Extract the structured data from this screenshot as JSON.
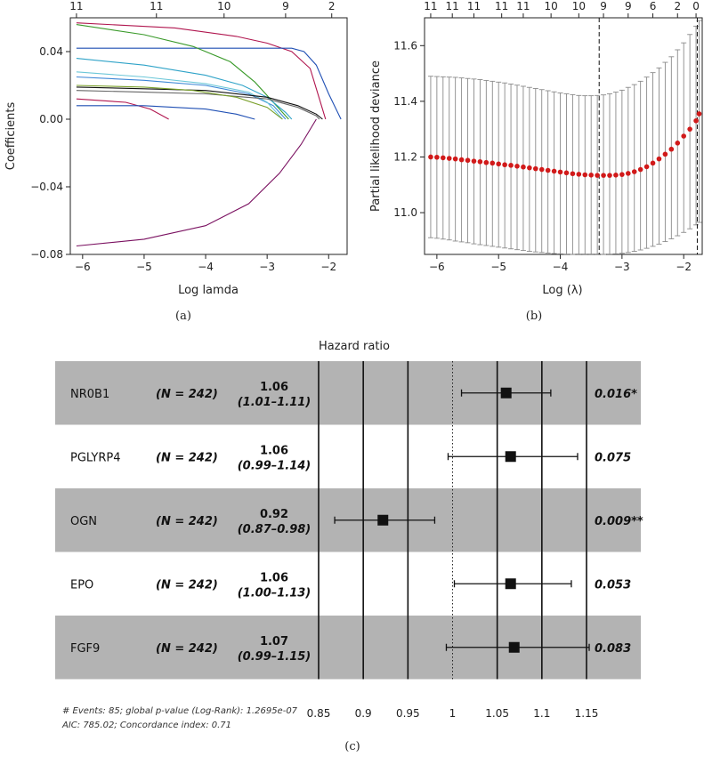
{
  "chart_data": [
    {
      "type": "line",
      "panel": "(a)",
      "xlabel": "Log lamda",
      "ylabel": "Coefficients",
      "xlim": [
        -6.2,
        -1.7
      ],
      "ylim": [
        -0.08,
        0.06
      ],
      "x_ticks": [
        -6,
        -5,
        -4,
        -3,
        -2
      ],
      "y_ticks": [
        0.04,
        0.0,
        -0.04,
        -0.08
      ],
      "y_tick_labels": [
        "0.04",
        "0.00",
        "-0.04",
        "-0.08"
      ],
      "top_ticks": [
        {
          "x": -6.1,
          "label": "11"
        },
        {
          "x": -4.8,
          "label": "11"
        },
        {
          "x": -3.7,
          "label": "10"
        },
        {
          "x": -2.7,
          "label": "9"
        },
        {
          "x": -1.95,
          "label": "2"
        }
      ],
      "series": [
        {
          "color": "#b0154e",
          "points": [
            [
              -6.1,
              0.057
            ],
            [
              -4.5,
              0.054
            ],
            [
              -3.5,
              0.049
            ],
            [
              -3.0,
              0.045
            ],
            [
              -2.6,
              0.04
            ],
            [
              -2.3,
              0.03
            ],
            [
              -2.15,
              0.012
            ],
            [
              -2.05,
              0.0
            ]
          ]
        },
        {
          "color": "#1f4fb4",
          "points": [
            [
              -6.1,
              0.042
            ],
            [
              -4.0,
              0.042
            ],
            [
              -2.6,
              0.042
            ],
            [
              -2.4,
              0.04
            ],
            [
              -2.2,
              0.032
            ],
            [
              -2.0,
              0.015
            ],
            [
              -1.8,
              0.0
            ]
          ]
        },
        {
          "color": "#3a9a2a",
          "points": [
            [
              -6.1,
              0.056
            ],
            [
              -5.0,
              0.05
            ],
            [
              -4.2,
              0.043
            ],
            [
              -3.6,
              0.034
            ],
            [
              -3.2,
              0.022
            ],
            [
              -2.9,
              0.01
            ],
            [
              -2.65,
              0.0
            ]
          ]
        },
        {
          "color": "#2fa3c8",
          "points": [
            [
              -6.1,
              0.036
            ],
            [
              -5.0,
              0.032
            ],
            [
              -4.0,
              0.026
            ],
            [
              -3.4,
              0.02
            ],
            [
              -3.0,
              0.013
            ],
            [
              -2.7,
              0.004
            ],
            [
              -2.6,
              0.0
            ]
          ]
        },
        {
          "color": "#3b86d6",
          "points": [
            [
              -6.1,
              0.025
            ],
            [
              -5.0,
              0.023
            ],
            [
              -4.0,
              0.02
            ],
            [
              -3.3,
              0.015
            ],
            [
              -2.9,
              0.008
            ],
            [
              -2.7,
              0.0
            ]
          ]
        },
        {
          "color": "#6cc7d8",
          "points": [
            [
              -6.1,
              0.028
            ],
            [
              -5.0,
              0.025
            ],
            [
              -4.0,
              0.021
            ],
            [
              -3.3,
              0.016
            ],
            [
              -3.0,
              0.01
            ],
            [
              -2.75,
              0.0
            ]
          ]
        },
        {
          "color": "#111111",
          "points": [
            [
              -6.1,
              0.019
            ],
            [
              -5.0,
              0.018
            ],
            [
              -4.0,
              0.017
            ],
            [
              -3.0,
              0.013
            ],
            [
              -2.5,
              0.008
            ],
            [
              -2.2,
              0.003
            ],
            [
              -2.1,
              0.0
            ]
          ]
        },
        {
          "color": "#666666",
          "points": [
            [
              -6.1,
              0.017
            ],
            [
              -5.0,
              0.016
            ],
            [
              -4.0,
              0.015
            ],
            [
              -3.0,
              0.012
            ],
            [
              -2.5,
              0.007
            ],
            [
              -2.2,
              0.002
            ],
            [
              -2.15,
              0.0
            ]
          ]
        },
        {
          "color": "#7aa02a",
          "points": [
            [
              -6.1,
              0.02
            ],
            [
              -5.0,
              0.019
            ],
            [
              -4.2,
              0.017
            ],
            [
              -3.5,
              0.013
            ],
            [
              -3.0,
              0.007
            ],
            [
              -2.75,
              0.0
            ]
          ]
        },
        {
          "color": "#b0154e",
          "points": [
            [
              -6.1,
              0.012
            ],
            [
              -5.3,
              0.01
            ],
            [
              -4.9,
              0.006
            ],
            [
              -4.6,
              0.0
            ]
          ]
        },
        {
          "color": "#1f4fb4",
          "points": [
            [
              -6.1,
              0.008
            ],
            [
              -5.0,
              0.008
            ],
            [
              -4.0,
              0.006
            ],
            [
              -3.5,
              0.003
            ],
            [
              -3.2,
              0.0
            ]
          ]
        },
        {
          "color": "#7a1060",
          "points": [
            [
              -6.1,
              -0.075
            ],
            [
              -5.0,
              -0.071
            ],
            [
              -4.0,
              -0.063
            ],
            [
              -3.3,
              -0.05
            ],
            [
              -2.8,
              -0.032
            ],
            [
              -2.45,
              -0.015
            ],
            [
              -2.2,
              0.0
            ]
          ]
        }
      ]
    },
    {
      "type": "scatter",
      "panel": "(b)",
      "xlabel": "Log (λ)",
      "ylabel": "Partial likelihood deviance",
      "xlim": [
        -6.2,
        -1.7
      ],
      "ylim": [
        10.85,
        11.7
      ],
      "x_ticks": [
        -6,
        -5,
        -4,
        -3,
        -2
      ],
      "y_ticks": [
        11.0,
        11.2,
        11.4,
        11.6
      ],
      "y_tick_labels": [
        "11.0",
        "11.2",
        "11.4",
        "11.6"
      ],
      "top_ticks": [
        {
          "x": -6.1,
          "label": "11"
        },
        {
          "x": -5.75,
          "label": "11"
        },
        {
          "x": -5.4,
          "label": "11"
        },
        {
          "x": -4.95,
          "label": "11"
        },
        {
          "x": -4.6,
          "label": "11"
        },
        {
          "x": -4.15,
          "label": "10"
        },
        {
          "x": -3.7,
          "label": "10"
        },
        {
          "x": -3.3,
          "label": "9"
        },
        {
          "x": -2.9,
          "label": "9"
        },
        {
          "x": -2.5,
          "label": "6"
        },
        {
          "x": -2.1,
          "label": "2"
        },
        {
          "x": -1.8,
          "label": "0"
        }
      ],
      "vlines": [
        -3.37,
        -1.78
      ],
      "points_x": [
        -6.1,
        -6.0,
        -5.9,
        -5.8,
        -5.7,
        -5.6,
        -5.5,
        -5.4,
        -5.3,
        -5.2,
        -5.1,
        -5.0,
        -4.9,
        -4.8,
        -4.7,
        -4.6,
        -4.5,
        -4.4,
        -4.3,
        -4.2,
        -4.1,
        -4.0,
        -3.9,
        -3.8,
        -3.7,
        -3.6,
        -3.5,
        -3.4,
        -3.3,
        -3.2,
        -3.1,
        -3.0,
        -2.9,
        -2.8,
        -2.7,
        -2.6,
        -2.5,
        -2.4,
        -2.3,
        -2.2,
        -2.1,
        -2.0,
        -1.9,
        -1.8,
        -1.75
      ],
      "points_y": [
        11.2,
        11.199,
        11.197,
        11.195,
        11.193,
        11.19,
        11.188,
        11.185,
        11.183,
        11.18,
        11.178,
        11.175,
        11.172,
        11.17,
        11.167,
        11.164,
        11.161,
        11.158,
        11.155,
        11.152,
        11.149,
        11.146,
        11.143,
        11.14,
        11.138,
        11.136,
        11.135,
        11.134,
        11.134,
        11.134,
        11.135,
        11.137,
        11.141,
        11.147,
        11.155,
        11.165,
        11.178,
        11.193,
        11.21,
        11.228,
        11.25,
        11.275,
        11.3,
        11.33,
        11.355
      ],
      "err_lo": [
        10.91,
        10.908,
        10.905,
        10.902,
        10.898,
        10.895,
        10.892,
        10.888,
        10.885,
        10.882,
        10.879,
        10.876,
        10.873,
        10.87,
        10.867,
        10.864,
        10.861,
        10.859,
        10.857,
        10.855,
        10.853,
        10.852,
        10.851,
        10.85,
        10.849,
        10.849,
        10.849,
        10.849,
        10.85,
        10.851,
        10.852,
        10.854,
        10.857,
        10.861,
        10.866,
        10.872,
        10.879,
        10.887,
        10.896,
        10.906,
        10.917,
        10.929,
        10.942,
        10.956,
        10.965
      ],
      "err_hi": [
        11.49,
        11.489,
        11.488,
        11.487,
        11.486,
        11.484,
        11.482,
        11.48,
        11.478,
        11.475,
        11.472,
        11.469,
        11.466,
        11.462,
        11.458,
        11.454,
        11.45,
        11.446,
        11.442,
        11.438,
        11.434,
        11.43,
        11.427,
        11.424,
        11.421,
        11.42,
        11.42,
        11.421,
        11.423,
        11.427,
        11.433,
        11.44,
        11.45,
        11.46,
        11.472,
        11.487,
        11.503,
        11.52,
        11.54,
        11.56,
        11.585,
        11.61,
        11.64,
        11.67,
        11.69
      ]
    },
    {
      "type": "forest",
      "panel": "(c)",
      "title": "Hazard ratio",
      "x_ticks": [
        0.85,
        0.9,
        0.95,
        1,
        1.05,
        1.1,
        1.15
      ],
      "x_tick_labels": [
        "0.85",
        "0.9",
        "0.95",
        "1",
        "1.05",
        "1.1",
        "1.15"
      ],
      "rows": [
        {
          "gene": "NR0B1",
          "n": "(N = 242)",
          "hr": "1.06",
          "ci": "(1.01–1.11)",
          "p": "0.016*",
          "est": 1.06,
          "lo": 1.01,
          "hi": 1.11,
          "shaded": true
        },
        {
          "gene": "PGLYRP4",
          "n": "(N = 242)",
          "hr": "1.06",
          "ci": "(0.99–1.14)",
          "p": "0.075",
          "est": 1.065,
          "lo": 0.995,
          "hi": 1.14,
          "shaded": false
        },
        {
          "gene": "OGN",
          "n": "(N = 242)",
          "hr": "0.92",
          "ci": "(0.87–0.98)",
          "p": "0.009**",
          "est": 0.922,
          "lo": 0.868,
          "hi": 0.98,
          "shaded": true
        },
        {
          "gene": "EPO",
          "n": "(N = 242)",
          "hr": "1.06",
          "ci": "(1.00–1.13)",
          "p": "0.053",
          "est": 1.065,
          "lo": 1.002,
          "hi": 1.133,
          "shaded": false
        },
        {
          "gene": "FGF9",
          "n": "(N = 242)",
          "hr": "1.07",
          "ci": "(0.99–1.15)",
          "p": "0.083",
          "est": 1.069,
          "lo": 0.993,
          "hi": 1.153,
          "shaded": true
        }
      ],
      "footnote_line1": "# Events: 85; global p-value (Log-Rank): 1.2695e-07",
      "footnote_line2": "AIC: 785.02; Concordance index: 0.71"
    }
  ],
  "captions": {
    "a": "(a)",
    "b": "(b)",
    "c": "(c)"
  },
  "colors": {
    "band_gray": "#b3b3b3",
    "dot_red": "#d11a1a",
    "errbar_gray": "#8a8a8a"
  }
}
